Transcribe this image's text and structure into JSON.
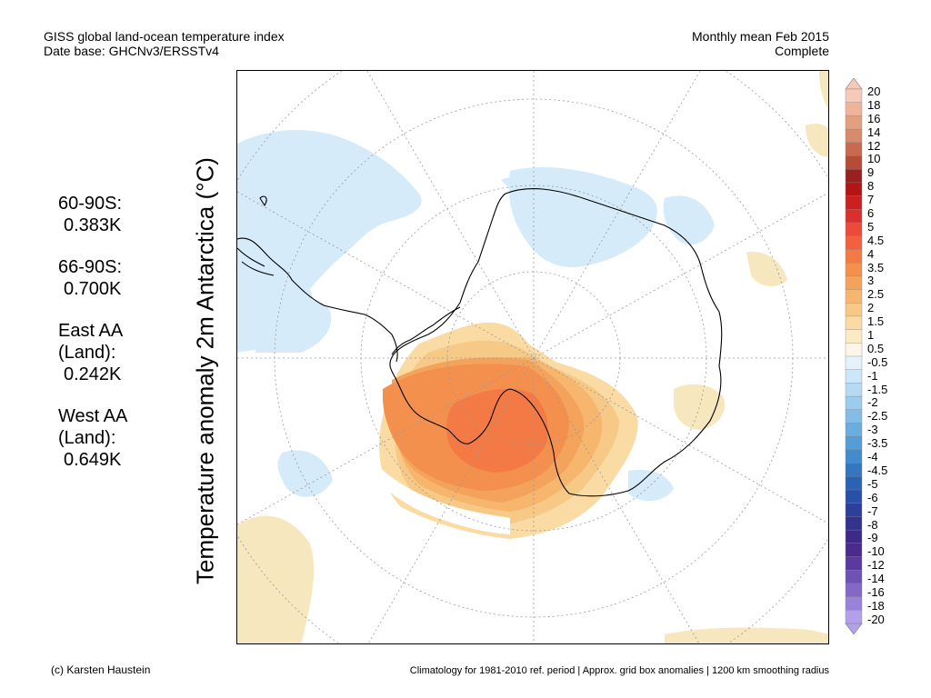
{
  "header": {
    "title_line1": "GISS global land-ocean temperature index",
    "title_line2": "Date base: GHCNv3/ERSSTv4",
    "period_line1": "Monthly mean Feb 2015",
    "period_line2": "Complete"
  },
  "y_axis_label": "Temperature anomaly 2m Antarctica (°C)",
  "stats": [
    {
      "label": "60-90S:",
      "value": "0.383K"
    },
    {
      "label": "66-90S:",
      "value": "0.700K"
    },
    {
      "label": "East AA",
      "label2": "(Land):",
      "value": "0.242K"
    },
    {
      "label": "West AA",
      "label2": "(Land):",
      "value": "0.649K"
    }
  ],
  "colorbar": {
    "ticks": [
      "20",
      "18",
      "16",
      "14",
      "12",
      "10",
      "9",
      "8",
      "7",
      "6",
      "5",
      "4.5",
      "4",
      "3.5",
      "3",
      "2.5",
      "2",
      "1.5",
      "1",
      "0.5",
      "-0.5",
      "-1",
      "-1.5",
      "-2",
      "-2.5",
      "-3",
      "-3.5",
      "-4",
      "-4.5",
      "-5",
      "-6",
      "-7",
      "-8",
      "-9",
      "-10",
      "-12",
      "-14",
      "-16",
      "-18",
      "-20"
    ],
    "colors": [
      "#f6c9b8",
      "#eeb49a",
      "#e3a081",
      "#d88a6a",
      "#c86a4f",
      "#b64b38",
      "#9a1f1f",
      "#b31515",
      "#cc1f1f",
      "#dd2e2e",
      "#ec4a3a",
      "#f2603f",
      "#f37a45",
      "#f3904e",
      "#f4a35c",
      "#f6b66e",
      "#f7c986",
      "#f9dba3",
      "#fbebc5",
      "#fdf6e8",
      "#e4f2fc",
      "#cce7f8",
      "#b4dbf3",
      "#9ccdee",
      "#83bde7",
      "#6aaee0",
      "#549dd6",
      "#428bcc",
      "#3477c0",
      "#2a63b3",
      "#2a4fa8",
      "#2c3f9a",
      "#33338e",
      "#3d2a86",
      "#4a2a8c",
      "#5a3a9e",
      "#6e52b4",
      "#8368c8",
      "#9a82d8",
      "#b3a0e8"
    ]
  },
  "footer": {
    "credit": "(c) Karsten Haustein",
    "note": "Climatology for 1981-2010 ref. period | Approx. grid box anomalies | 1200 km smoothing radius"
  }
}
